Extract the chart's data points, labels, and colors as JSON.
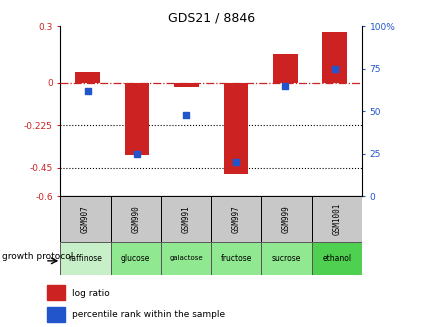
{
  "title": "GDS21 / 8846",
  "samples": [
    "GSM907",
    "GSM990",
    "GSM991",
    "GSM997",
    "GSM999",
    "GSM1001"
  ],
  "protocols": [
    "raffinose",
    "glucose",
    "galactose",
    "fructose",
    "sucrose",
    "ethanol"
  ],
  "protocol_colors": [
    "#c8f0c8",
    "#90e890",
    "#90e890",
    "#90e890",
    "#90e890",
    "#50d050"
  ],
  "log_ratio": [
    0.06,
    -0.38,
    -0.02,
    -0.48,
    0.15,
    0.27
  ],
  "percentile_rank": [
    62,
    25,
    48,
    20,
    65,
    75
  ],
  "left_ylim": [
    -0.6,
    0.3
  ],
  "right_ylim": [
    0,
    100
  ],
  "left_yticks": [
    0.3,
    0.0,
    -0.225,
    -0.45,
    -0.6
  ],
  "right_yticks": [
    100,
    75,
    50,
    25,
    0
  ],
  "left_ytick_labels": [
    "0.3",
    "0",
    "-0.225",
    "-0.45",
    "-0.6"
  ],
  "right_ytick_labels": [
    "100%",
    "75",
    "50",
    "25",
    "0"
  ],
  "bar_color": "#cc2222",
  "dot_color": "#2255cc",
  "hline_y": 0,
  "dotted_lines": [
    -0.225,
    -0.45
  ],
  "background_color": "#ffffff",
  "bar_width": 0.5,
  "sample_cell_color": "#c8c8c8"
}
